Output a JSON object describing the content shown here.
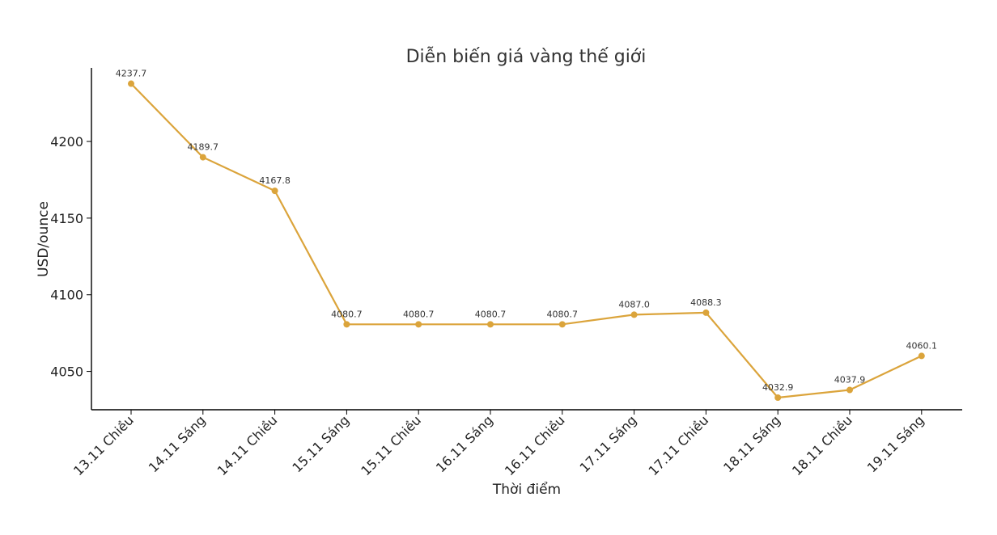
{
  "chart_data": {
    "type": "line",
    "title": "Diễn biến giá vàng thế giới",
    "xlabel": "Thời điểm",
    "ylabel": "USD/ounce",
    "categories": [
      "13.11 Chiều",
      "14.11 Sáng",
      "14.11 Chiều",
      "15.11 Sáng",
      "15.11 Chiều",
      "16.11 Sáng",
      "16.11 Chiều",
      "17.11 Sáng",
      "17.11 Chiều",
      "18.11 Sáng",
      "18.11 Chiều",
      "19.11 Sáng"
    ],
    "values": [
      4237.7,
      4189.7,
      4167.8,
      4080.7,
      4080.7,
      4080.7,
      4080.7,
      4087.0,
      4088.3,
      4032.9,
      4037.9,
      4060.1
    ],
    "data_labels": [
      "4237.7",
      "4189.7",
      "4167.8",
      "4080.7",
      "4080.7",
      "4080.7",
      "4080.7",
      "4087.0",
      "4088.3",
      "4032.9",
      "4037.9",
      "4060.1"
    ],
    "ylim": [
      4025,
      4248
    ],
    "y_ticks": [
      4050,
      4100,
      4150,
      4200
    ],
    "y_tick_labels": [
      "4050",
      "4100",
      "4150",
      "4200"
    ],
    "grid": false,
    "legend": "none",
    "line_color": "#DBA43B",
    "marker_color": "#DBA43B"
  }
}
